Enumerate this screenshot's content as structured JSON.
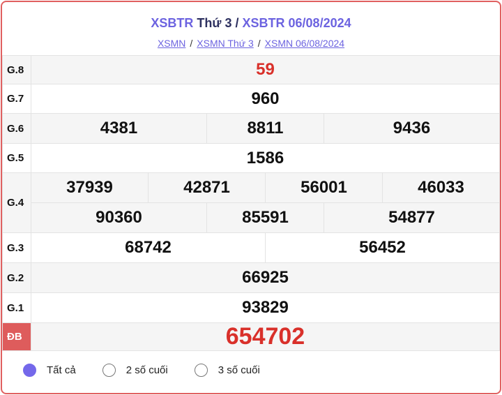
{
  "header": {
    "title_a": "XSBTR",
    "title_b": "Thứ 3",
    "title_sep": "/",
    "title_c": "XSBTR 06/08/2024"
  },
  "breadcrumb": [
    "XSMN",
    "XSMN Thứ 3",
    "XSMN 06/08/2024"
  ],
  "prizes": [
    {
      "label": "G.8",
      "values": [
        "59"
      ]
    },
    {
      "label": "G.7",
      "values": [
        "960"
      ]
    },
    {
      "label": "G.6",
      "values": [
        "4381",
        "8811",
        "9436"
      ]
    },
    {
      "label": "G.5",
      "values": [
        "1586"
      ]
    },
    {
      "label": "G.4",
      "values": [
        "37939",
        "42871",
        "56001",
        "46033",
        "90360",
        "85591",
        "54877"
      ]
    },
    {
      "label": "G.3",
      "values": [
        "68742",
        "56452"
      ]
    },
    {
      "label": "G.2",
      "values": [
        "66925"
      ]
    },
    {
      "label": "G.1",
      "values": [
        "93829"
      ]
    },
    {
      "label": "ĐB",
      "values": [
        "654702"
      ]
    }
  ],
  "options": [
    {
      "label": "Tất cả",
      "checked": true
    },
    {
      "label": "2 số cuối",
      "checked": false
    },
    {
      "label": "3 số cuối",
      "checked": false
    }
  ],
  "colors": {
    "accent": "#6c63e0",
    "special": "#d9302a",
    "border": "#e06060"
  }
}
